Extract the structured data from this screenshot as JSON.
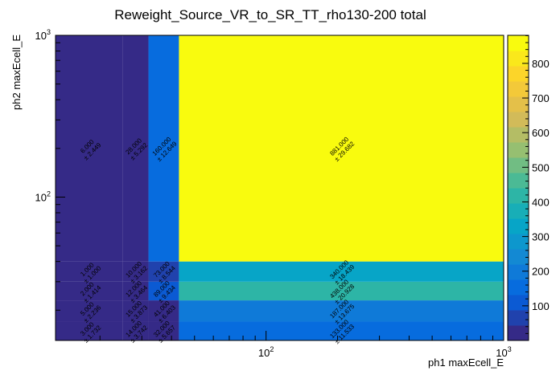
{
  "chart_data": {
    "type": "heatmap",
    "title": "Reweight_Source_VR_to_SR_TT_rho130-200 total",
    "xlabel": "ph1 maxEcell_E",
    "ylabel": "ph2 maxEcell_E",
    "x_scale": "log",
    "y_scale": "log",
    "x_edges": [
      13,
      25,
      32,
      43,
      1000
    ],
    "y_edges": [
      13,
      17,
      23,
      30,
      40,
      1000
    ],
    "x_tick_labels": [
      {
        "value": 100,
        "base": "10",
        "exp": "2"
      },
      {
        "value": 1000,
        "base": "10",
        "exp": "3"
      }
    ],
    "y_tick_labels": [
      {
        "value": 100,
        "base": "10",
        "exp": "2"
      },
      {
        "value": 1000,
        "base": "10",
        "exp": "3"
      }
    ],
    "z_range": [
      0,
      881
    ],
    "z_ticks": [
      "100",
      "200",
      "300",
      "400",
      "500",
      "600",
      "700",
      "800"
    ],
    "colormap": [
      "#352a87",
      "#0363e1",
      "#1485d4",
      "#06a7c6",
      "#38b99e",
      "#92bf73",
      "#d9ba56",
      "#fcce2e",
      "#f9fb0e"
    ],
    "cells": [
      {
        "x": 0,
        "y": 0,
        "value": 3,
        "text": "3.000",
        "err": "± 1.732"
      },
      {
        "x": 0,
        "y": 1,
        "value": 5,
        "text": "5.000",
        "err": "± 2.236"
      },
      {
        "x": 0,
        "y": 2,
        "value": 2,
        "text": "2.000",
        "err": "± 1.414"
      },
      {
        "x": 0,
        "y": 3,
        "value": 1,
        "text": "1.000",
        "err": "± 1.000"
      },
      {
        "x": 0,
        "y": 4,
        "value": 6,
        "text": "6.000",
        "err": "± 2.449"
      },
      {
        "x": 1,
        "y": 0,
        "value": 14,
        "text": "14.000",
        "err": "± 3.742"
      },
      {
        "x": 1,
        "y": 1,
        "value": 15,
        "text": "15.000",
        "err": "± 3.873"
      },
      {
        "x": 1,
        "y": 2,
        "value": 12,
        "text": "12.000",
        "err": "± 3.464"
      },
      {
        "x": 1,
        "y": 3,
        "value": 10,
        "text": "10.000",
        "err": "± 3.162"
      },
      {
        "x": 1,
        "y": 4,
        "value": 28,
        "text": "28.000",
        "err": "± 5.292"
      },
      {
        "x": 2,
        "y": 0,
        "value": 32,
        "text": "32.000",
        "err": "± 5.657"
      },
      {
        "x": 2,
        "y": 1,
        "value": 41,
        "text": "41.000",
        "err": "± 6.403"
      },
      {
        "x": 2,
        "y": 2,
        "value": 89,
        "text": "89.000",
        "err": "± 9.434"
      },
      {
        "x": 2,
        "y": 3,
        "value": 73,
        "text": "73.000",
        "err": "± 8.544"
      },
      {
        "x": 2,
        "y": 4,
        "value": 160,
        "text": "160.000",
        "err": "± 12.649"
      },
      {
        "x": 3,
        "y": 0,
        "value": 133,
        "text": "133.000",
        "err": "± 11.533"
      },
      {
        "x": 3,
        "y": 1,
        "value": 187,
        "text": "187.000",
        "err": "± 13.675"
      },
      {
        "x": 3,
        "y": 2,
        "value": 438,
        "text": "438.000",
        "err": "± 20.928"
      },
      {
        "x": 3,
        "y": 3,
        "value": 340,
        "text": "340.000",
        "err": "± 18.439"
      },
      {
        "x": 3,
        "y": 4,
        "value": 881,
        "text": "881.000",
        "err": "± 29.682"
      }
    ]
  }
}
